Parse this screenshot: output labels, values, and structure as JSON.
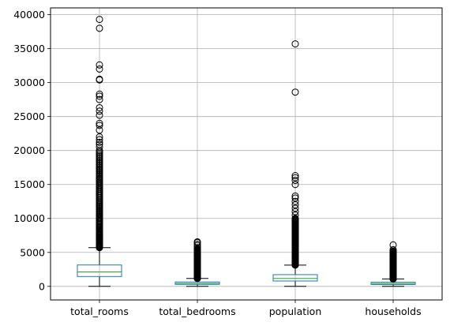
{
  "chart_data": {
    "type": "box",
    "title": "",
    "xlabel": "",
    "ylabel": "",
    "ylim": [
      -2000,
      41000
    ],
    "yticks": [
      0,
      5000,
      10000,
      15000,
      20000,
      25000,
      30000,
      35000,
      40000
    ],
    "ytick_labels": [
      "0",
      "5000",
      "10000",
      "15000",
      "20000",
      "25000",
      "30000",
      "35000",
      "40000"
    ],
    "grid": true,
    "colors": {
      "box": "#1f77b4",
      "median": "#2ca02c",
      "whisker": "#000000",
      "flier": "#000000",
      "grid": "#b0b0b0"
    },
    "categories": [
      "total_rooms",
      "total_bedrooms",
      "population",
      "households"
    ],
    "boxes": [
      {
        "label": "total_rooms",
        "whisker_low": 2,
        "q1": 1450,
        "median": 2130,
        "q3": 3150,
        "whisker_high": 5700,
        "outlier_range": [
          5700,
          20000
        ],
        "outliers": [
          20500,
          20900,
          21200,
          21600,
          22000,
          23000,
          23700,
          24000,
          25200,
          25800,
          26300,
          27500,
          28000,
          28300,
          30400,
          30500,
          32000,
          32600,
          38000,
          39300
        ]
      },
      {
        "label": "total_bedrooms",
        "whisker_low": 1,
        "q1": 296,
        "median": 435,
        "q3": 647,
        "whisker_high": 1170,
        "outlier_range": [
          1170,
          5500
        ],
        "outliers": [
          5700,
          6000,
          6200,
          6450,
          6550
        ]
      },
      {
        "label": "population",
        "whisker_low": 3,
        "q1": 787,
        "median": 1166,
        "q3": 1725,
        "whisker_high": 3130,
        "outlier_range": [
          3130,
          10000
        ],
        "outliers": [
          10500,
          11000,
          11500,
          12000,
          12500,
          13000,
          13300,
          15000,
          15600,
          16000,
          16300,
          28600,
          35700
        ]
      },
      {
        "label": "households",
        "whisker_low": 1,
        "q1": 280,
        "median": 409,
        "q3": 605,
        "whisker_high": 1090,
        "outlier_range": [
          1090,
          5200
        ],
        "outliers": [
          5400,
          6100
        ]
      }
    ]
  }
}
